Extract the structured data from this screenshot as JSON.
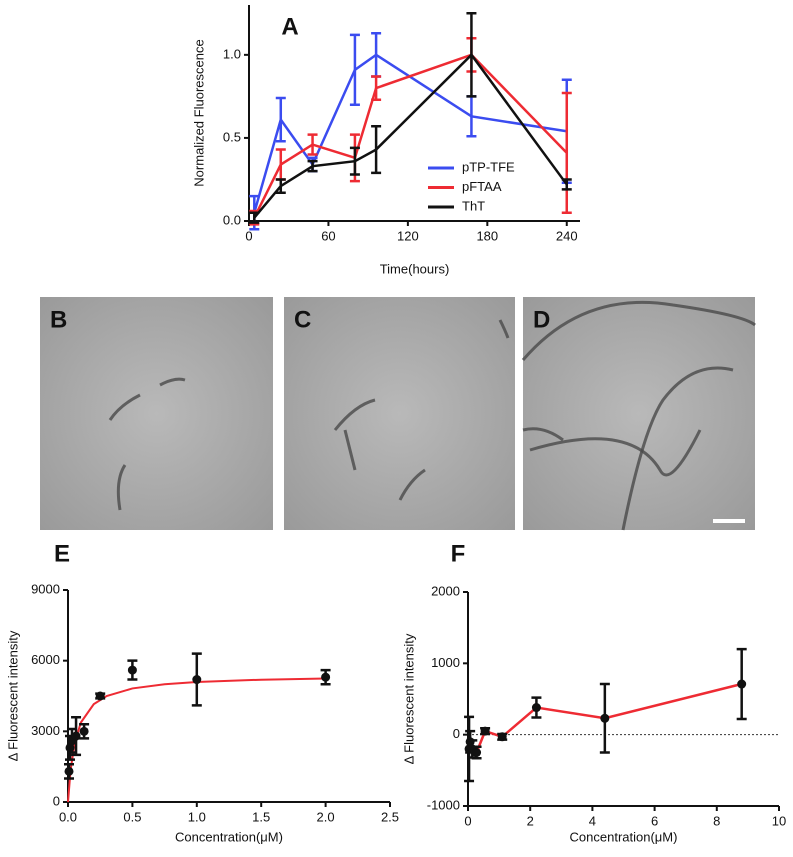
{
  "chart_data": [
    {
      "type": "line",
      "title": "A",
      "x_label": "Time(hours)",
      "y_label": "Normalized Fluorescence",
      "x": [
        4,
        24,
        48,
        80,
        96,
        168,
        240
      ],
      "xlim": [
        0,
        250
      ],
      "xticks": [
        0,
        60,
        120,
        180,
        240
      ],
      "ylim": [
        0,
        1.3
      ],
      "yticks": [
        {
          "value": 0,
          "label": "0.0"
        },
        {
          "value": 0.5,
          "label": "0.5"
        },
        {
          "value": 1,
          "label": "1.0"
        }
      ],
      "series": [
        {
          "name": "pTP-TFE",
          "color": "#3b4cf0",
          "values": [
            0.05,
            0.61,
            0.34,
            0.91,
            1.0,
            0.63,
            0.54
          ],
          "errors": [
            0.1,
            0.13,
            0.04,
            0.21,
            0.13,
            0.12,
            0.31
          ]
        },
        {
          "name": "pFTAA",
          "color": "#ee2b33",
          "values": [
            0.02,
            0.34,
            0.46,
            0.38,
            0.8,
            1.0,
            0.41
          ],
          "errors": [
            0.04,
            0.09,
            0.06,
            0.14,
            0.07,
            0.1,
            0.36
          ]
        },
        {
          "name": "ThT",
          "color": "#111111",
          "values": [
            0.02,
            0.21,
            0.33,
            0.36,
            0.43,
            1.0,
            0.22
          ],
          "errors": [
            0.03,
            0.04,
            0.03,
            0.08,
            0.14,
            0.25,
            0.03
          ]
        }
      ]
    },
    {
      "type": "image",
      "title": "B"
    },
    {
      "type": "image",
      "title": "C"
    },
    {
      "type": "image",
      "title": "D"
    },
    {
      "type": "scatter",
      "title": "E",
      "x_label": "Concentration(μM)",
      "y_label": "Δ Fluorescent intensity",
      "xlim": [
        0,
        2.5
      ],
      "xticks": [
        {
          "value": 0,
          "label": "0.0"
        },
        {
          "value": 0.5,
          "label": "0.5"
        },
        {
          "value": 1,
          "label": "1.0"
        },
        {
          "value": 1.5,
          "label": "1.5"
        },
        {
          "value": 2,
          "label": "2.0"
        },
        {
          "value": 2.5,
          "label": "2.5"
        }
      ],
      "ylim": [
        0,
        9000
      ],
      "yticks": [
        0,
        3000,
        6000,
        9000
      ],
      "series": [
        {
          "color": "#111111",
          "x": [
            0.0078,
            0.0156,
            0.031,
            0.0625,
            0.125,
            0.25,
            0.5,
            1,
            2
          ],
          "values": [
            1300,
            2300,
            2600,
            2800,
            3000,
            4500,
            5600,
            5200,
            5300
          ],
          "errors": [
            300,
            500,
            500,
            800,
            300,
            100,
            400,
            1100,
            300
          ]
        }
      ],
      "fit": {
        "color": "#ee2b33",
        "x": [
          0,
          0.02,
          0.05,
          0.1,
          0.2,
          0.3,
          0.5,
          0.75,
          1,
          1.5,
          2
        ],
        "values": [
          0,
          1350,
          2455,
          3375,
          4154,
          4500,
          4821,
          5000,
          5094,
          5192,
          5243
        ]
      }
    },
    {
      "type": "line",
      "title": "F",
      "x_label": "Concentration(μM)",
      "y_label": "Δ Fluorescent intensity",
      "xlim": [
        0,
        10
      ],
      "xticks": [
        0,
        2,
        4,
        6,
        8,
        10
      ],
      "ylim": [
        -1000,
        2000
      ],
      "yticks": [
        -1000,
        0,
        1000,
        2000
      ],
      "zero_line": true,
      "x": [
        0.034,
        0.069,
        0.138,
        0.275,
        0.55,
        1.1,
        2.2,
        4.4,
        8.8
      ],
      "series": [
        {
          "color": "#ee2b33",
          "marker_color": "#111111",
          "values": [
            -200,
            -100,
            -200,
            -250,
            50,
            -30,
            380,
            230,
            710
          ],
          "errors": [
            450,
            150,
            120,
            80,
            40,
            40,
            140,
            480,
            490
          ]
        }
      ]
    }
  ]
}
